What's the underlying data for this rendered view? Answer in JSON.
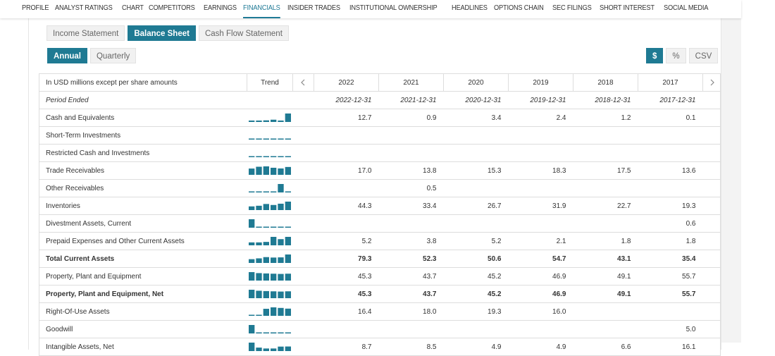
{
  "nav": {
    "items": [
      "PROFILE",
      "ANALYST RATINGS",
      "CHART",
      "COMPETITORS",
      "EARNINGS",
      "FINANCIALS",
      "INSIDER TRADES",
      "INSTITUTIONAL OWNERSHIP",
      "HEADLINES",
      "OPTIONS CHAIN",
      "SEC FILINGS",
      "SHORT INTEREST",
      "SOCIAL MEDIA"
    ],
    "active": 5
  },
  "statement_tabs": {
    "items": [
      "Income Statement",
      "Balance Sheet",
      "Cash Flow Statement"
    ],
    "active": 1
  },
  "period_tabs": {
    "items": [
      "Annual",
      "Quarterly"
    ],
    "active": 0
  },
  "units": {
    "items": [
      "$",
      "%",
      "CSV"
    ],
    "active": 0
  },
  "table": {
    "caption": "In USD millions except per share amounts",
    "trend_header": "Trend",
    "years": [
      "2022",
      "2021",
      "2020",
      "2019",
      "2018",
      "2017"
    ],
    "period_label": "Period Ended",
    "period_ends": [
      "2022-12-31",
      "2021-12-31",
      "2020-12-31",
      "2019-12-31",
      "2018-12-31",
      "2017-12-31"
    ],
    "rows": [
      {
        "label": "Cash and Equivalents",
        "bold": false,
        "values": [
          "12.7",
          "0.9",
          "3.4",
          "2.4",
          "1.2",
          "0.1"
        ]
      },
      {
        "label": "Short-Term Investments",
        "bold": false,
        "values": [
          null,
          null,
          null,
          null,
          null,
          null
        ]
      },
      {
        "label": "Restricted Cash and Investments",
        "bold": false,
        "values": [
          null,
          null,
          null,
          null,
          null,
          null
        ]
      },
      {
        "label": "Trade Receivables",
        "bold": false,
        "values": [
          "17.0",
          "13.8",
          "15.3",
          "18.3",
          "17.5",
          "13.6"
        ]
      },
      {
        "label": "Other Receivables",
        "bold": false,
        "values": [
          null,
          "0.5",
          null,
          null,
          null,
          null
        ]
      },
      {
        "label": "Inventories",
        "bold": false,
        "values": [
          "44.3",
          "33.4",
          "26.7",
          "31.9",
          "22.7",
          "19.3"
        ]
      },
      {
        "label": "Divestment Assets, Current",
        "bold": false,
        "values": [
          null,
          null,
          null,
          null,
          null,
          "0.6"
        ]
      },
      {
        "label": "Prepaid Expenses and Other Current Assets",
        "bold": false,
        "values": [
          "5.2",
          "3.8",
          "5.2",
          "2.1",
          "1.8",
          "1.8"
        ]
      },
      {
        "label": "Total Current Assets",
        "bold": true,
        "values": [
          "79.3",
          "52.3",
          "50.6",
          "54.7",
          "43.1",
          "35.4"
        ]
      },
      {
        "label": "Property, Plant and Equipment",
        "bold": false,
        "values": [
          "45.3",
          "43.7",
          "45.2",
          "46.9",
          "49.1",
          "55.7"
        ]
      },
      {
        "label": "Property, Plant and Equipment, Net",
        "bold": true,
        "values": [
          "45.3",
          "43.7",
          "45.2",
          "46.9",
          "49.1",
          "55.7"
        ]
      },
      {
        "label": "Right-Of-Use Assets",
        "bold": false,
        "values": [
          "16.4",
          "18.0",
          "19.3",
          "16.0",
          null,
          null
        ]
      },
      {
        "label": "Goodwill",
        "bold": false,
        "values": [
          null,
          null,
          null,
          null,
          null,
          "5.0"
        ]
      },
      {
        "label": "Intangible Assets, Net",
        "bold": false,
        "values": [
          "8.7",
          "8.5",
          "4.9",
          "4.9",
          "6.6",
          "16.1"
        ]
      }
    ]
  }
}
